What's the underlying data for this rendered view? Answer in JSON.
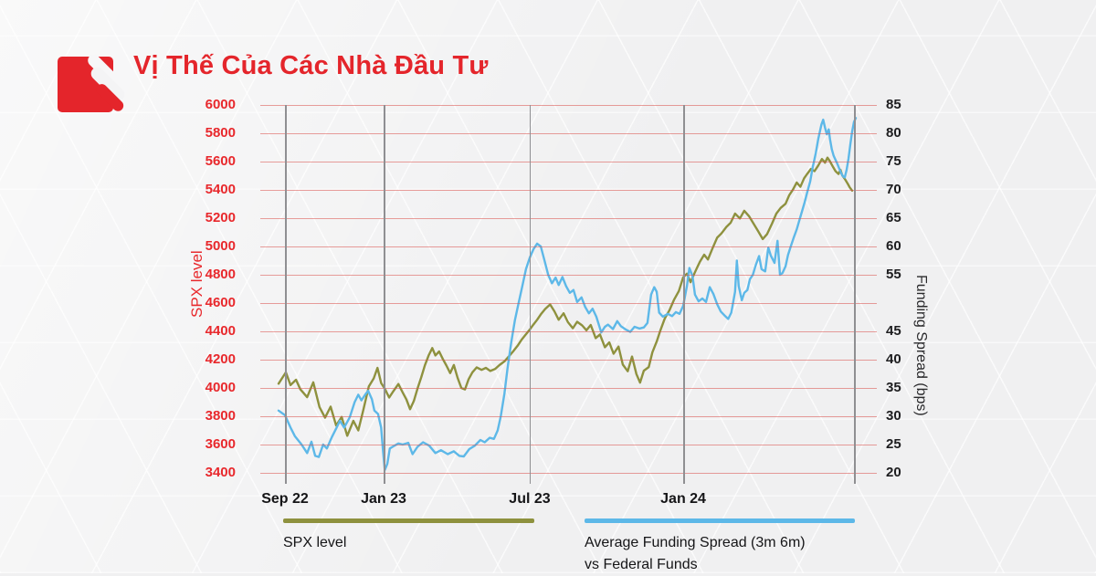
{
  "colors": {
    "red": "#e4252b",
    "axis_red": "#e8282c",
    "olive": "#8e913e",
    "blue": "#5db8e8",
    "grid_red": "#db524c",
    "grid_gray": "#8f8f92"
  },
  "header": {
    "title": "Vị Thế Của Các Nhà Đầu Tư",
    "logo": "pinetree-red-mark"
  },
  "legend": {
    "items": [
      {
        "label": "SPX level",
        "color": "#8e913e"
      },
      {
        "lines": [
          "Average Funding Spread (3m 6m)",
          "vs Federal Funds"
        ],
        "color": "#5db8e8"
      }
    ]
  },
  "chart_data": {
    "type": "line",
    "title": "Vị Thế Của Các Nhà Đầu Tư",
    "grid": {
      "horizontal": true,
      "vertical": true
    },
    "left_axis": {
      "label": "SPX level",
      "min": 3400,
      "max": 6000,
      "ticks": [
        6000,
        5800,
        5600,
        5400,
        5200,
        5000,
        4800,
        4600,
        4400,
        4200,
        4000,
        3800,
        3600,
        3400
      ]
    },
    "right_axis": {
      "label": "Funding Spread (bps)",
      "min": 20,
      "max": 85,
      "ticks": [
        "85",
        "80",
        "75",
        "70",
        "65",
        "60",
        "55",
        "",
        "45",
        "40",
        "35",
        "30",
        "25",
        "20"
      ]
    },
    "x_axis": {
      "ticks": [
        {
          "label": "Sep 22",
          "pos": 4.0
        },
        {
          "label": "Jan 23",
          "pos": 20.0
        },
        {
          "label": "Jul 23",
          "pos": 43.7
        },
        {
          "label": "Jan 24",
          "pos": 68.6
        }
      ],
      "right_boundary_pos": 96.3
    },
    "series": [
      {
        "name": "SPX level",
        "axis": "left",
        "color": "#8e913e",
        "points": [
          [
            2.96,
            4030
          ],
          [
            4.15,
            4110
          ],
          [
            4.9,
            4020
          ],
          [
            5.8,
            4058
          ],
          [
            6.5,
            3990
          ],
          [
            7.6,
            3935
          ],
          [
            8.6,
            4040
          ],
          [
            9.6,
            3865
          ],
          [
            10.5,
            3790
          ],
          [
            11.4,
            3868
          ],
          [
            12.3,
            3735
          ],
          [
            13.2,
            3795
          ],
          [
            14.1,
            3662
          ],
          [
            15.1,
            3768
          ],
          [
            15.9,
            3700
          ],
          [
            16.7,
            3842
          ],
          [
            17.6,
            4010
          ],
          [
            18.4,
            4068
          ],
          [
            19.0,
            4142
          ],
          [
            19.6,
            4035
          ],
          [
            20.2,
            3995
          ],
          [
            20.9,
            3932
          ],
          [
            21.6,
            3978
          ],
          [
            22.4,
            4028
          ],
          [
            23.1,
            3968
          ],
          [
            23.7,
            3918
          ],
          [
            24.3,
            3850
          ],
          [
            24.9,
            3908
          ],
          [
            25.5,
            3995
          ],
          [
            26.1,
            4075
          ],
          [
            26.7,
            4160
          ],
          [
            27.3,
            4230
          ],
          [
            27.9,
            4282
          ],
          [
            28.4,
            4230
          ],
          [
            29.0,
            4258
          ],
          [
            29.6,
            4205
          ],
          [
            30.2,
            4158
          ],
          [
            30.8,
            4105
          ],
          [
            31.4,
            4162
          ],
          [
            32.0,
            4072
          ],
          [
            32.6,
            4000
          ],
          [
            33.2,
            3990
          ],
          [
            33.8,
            4062
          ],
          [
            34.4,
            4110
          ],
          [
            35.1,
            4145
          ],
          [
            35.9,
            4128
          ],
          [
            36.6,
            4142
          ],
          [
            37.3,
            4120
          ],
          [
            38.1,
            4135
          ],
          [
            38.8,
            4162
          ],
          [
            39.6,
            4188
          ],
          [
            40.3,
            4222
          ],
          [
            41.0,
            4258
          ],
          [
            41.8,
            4302
          ],
          [
            42.4,
            4342
          ],
          [
            43.0,
            4375
          ],
          [
            43.7,
            4412
          ],
          [
            44.3,
            4448
          ],
          [
            44.9,
            4482
          ],
          [
            45.5,
            4520
          ],
          [
            46.2,
            4558
          ],
          [
            47.0,
            4590
          ],
          [
            47.7,
            4542
          ],
          [
            48.4,
            4482
          ],
          [
            49.2,
            4528
          ],
          [
            49.9,
            4465
          ],
          [
            50.7,
            4422
          ],
          [
            51.4,
            4468
          ],
          [
            52.2,
            4442
          ],
          [
            52.9,
            4408
          ],
          [
            53.6,
            4445
          ],
          [
            54.4,
            4352
          ],
          [
            55.1,
            4378
          ],
          [
            55.9,
            4288
          ],
          [
            56.6,
            4322
          ],
          [
            57.3,
            4242
          ],
          [
            58.1,
            4292
          ],
          [
            58.8,
            4165
          ],
          [
            59.6,
            4118
          ],
          [
            60.3,
            4222
          ],
          [
            61.0,
            4098
          ],
          [
            61.6,
            4038
          ],
          [
            62.2,
            4122
          ],
          [
            63.0,
            4148
          ],
          [
            63.6,
            4252
          ],
          [
            64.3,
            4328
          ],
          [
            64.9,
            4408
          ],
          [
            65.6,
            4490
          ],
          [
            66.4,
            4552
          ],
          [
            67.1,
            4622
          ],
          [
            67.9,
            4685
          ],
          [
            68.6,
            4782
          ],
          [
            69.2,
            4808
          ],
          [
            69.8,
            4748
          ],
          [
            70.5,
            4818
          ],
          [
            71.3,
            4892
          ],
          [
            72.0,
            4942
          ],
          [
            72.6,
            4908
          ],
          [
            73.3,
            4982
          ],
          [
            74.1,
            5062
          ],
          [
            74.8,
            5092
          ],
          [
            75.6,
            5138
          ],
          [
            76.3,
            5168
          ],
          [
            77.0,
            5232
          ],
          [
            77.8,
            5198
          ],
          [
            78.5,
            5252
          ],
          [
            79.3,
            5212
          ],
          [
            80.0,
            5162
          ],
          [
            80.7,
            5112
          ],
          [
            81.5,
            5052
          ],
          [
            82.2,
            5088
          ],
          [
            83.0,
            5162
          ],
          [
            83.7,
            5232
          ],
          [
            84.4,
            5272
          ],
          [
            85.2,
            5302
          ],
          [
            85.8,
            5362
          ],
          [
            86.4,
            5402
          ],
          [
            87.0,
            5452
          ],
          [
            87.6,
            5422
          ],
          [
            88.2,
            5482
          ],
          [
            88.7,
            5512
          ],
          [
            89.3,
            5548
          ],
          [
            89.9,
            5532
          ],
          [
            90.5,
            5572
          ],
          [
            91.1,
            5618
          ],
          [
            91.6,
            5592
          ],
          [
            92.0,
            5628
          ],
          [
            92.4,
            5602
          ],
          [
            92.9,
            5562
          ],
          [
            93.3,
            5532
          ],
          [
            93.8,
            5512
          ],
          [
            94.1,
            5542
          ],
          [
            94.4,
            5502
          ],
          [
            94.8,
            5478
          ],
          [
            95.3,
            5442
          ],
          [
            95.6,
            5418
          ],
          [
            96.0,
            5395
          ]
        ]
      },
      {
        "name": "Average Funding Spread (3m 6m) vs Federal Funds",
        "axis": "right",
        "color": "#5db8e8",
        "points": [
          [
            2.96,
            31
          ],
          [
            4.0,
            30.2
          ],
          [
            4.9,
            28
          ],
          [
            5.6,
            26.5
          ],
          [
            6.7,
            25
          ],
          [
            7.6,
            23.5
          ],
          [
            8.3,
            25.5
          ],
          [
            8.9,
            23
          ],
          [
            9.5,
            22.8
          ],
          [
            10.2,
            25
          ],
          [
            10.8,
            24.3
          ],
          [
            11.6,
            26.3
          ],
          [
            12.3,
            27.8
          ],
          [
            12.9,
            29.2
          ],
          [
            13.6,
            28
          ],
          [
            14.5,
            29.8
          ],
          [
            15.3,
            32.5
          ],
          [
            15.9,
            33.8
          ],
          [
            16.4,
            32.8
          ],
          [
            17.0,
            33.8
          ],
          [
            17.5,
            34.5
          ],
          [
            18.1,
            33
          ],
          [
            18.5,
            31
          ],
          [
            19.1,
            30.4
          ],
          [
            19.6,
            28
          ],
          [
            19.9,
            24
          ],
          [
            20.2,
            20.5
          ],
          [
            20.6,
            21.6
          ],
          [
            21.0,
            24.3
          ],
          [
            21.6,
            24.7
          ],
          [
            22.4,
            25.2
          ],
          [
            23.1,
            25
          ],
          [
            24.0,
            25.3
          ],
          [
            24.7,
            23.3
          ],
          [
            25.5,
            24.6
          ],
          [
            26.4,
            25.4
          ],
          [
            27.4,
            24.8
          ],
          [
            28.4,
            23.5
          ],
          [
            29.3,
            24
          ],
          [
            30.4,
            23.3
          ],
          [
            31.4,
            23.8
          ],
          [
            32.3,
            23
          ],
          [
            33.0,
            22.9
          ],
          [
            33.9,
            24.2
          ],
          [
            34.8,
            24.8
          ],
          [
            35.7,
            25.8
          ],
          [
            36.4,
            25.4
          ],
          [
            37.2,
            26.2
          ],
          [
            37.9,
            26
          ],
          [
            38.5,
            27.5
          ],
          [
            39.0,
            30
          ],
          [
            39.6,
            34
          ],
          [
            40.1,
            38.5
          ],
          [
            40.7,
            43
          ],
          [
            41.3,
            47
          ],
          [
            41.9,
            50
          ],
          [
            42.5,
            53
          ],
          [
            43.1,
            56
          ],
          [
            43.7,
            58
          ],
          [
            44.3,
            59.5
          ],
          [
            44.9,
            60.5
          ],
          [
            45.5,
            60
          ],
          [
            46.1,
            57.5
          ],
          [
            46.7,
            55
          ],
          [
            47.3,
            53.5
          ],
          [
            47.9,
            54.5
          ],
          [
            48.4,
            53.2
          ],
          [
            49.0,
            54.6
          ],
          [
            49.6,
            53
          ],
          [
            50.2,
            51.8
          ],
          [
            50.8,
            52.3
          ],
          [
            51.4,
            50.2
          ],
          [
            52.1,
            51
          ],
          [
            52.7,
            49.3
          ],
          [
            53.3,
            48.2
          ],
          [
            53.9,
            49
          ],
          [
            54.5,
            47.6
          ],
          [
            55.3,
            44.8
          ],
          [
            55.9,
            45.8
          ],
          [
            56.4,
            46.2
          ],
          [
            57.2,
            45.4
          ],
          [
            57.9,
            46.8
          ],
          [
            58.5,
            45.9
          ],
          [
            59.3,
            45.3
          ],
          [
            60.0,
            44.9
          ],
          [
            60.7,
            45.8
          ],
          [
            61.5,
            45.5
          ],
          [
            62.2,
            45.7
          ],
          [
            62.8,
            46.5
          ],
          [
            63.4,
            51.5
          ],
          [
            63.9,
            52.8
          ],
          [
            64.3,
            52
          ],
          [
            64.7,
            48.3
          ],
          [
            65.3,
            47.6
          ],
          [
            66.1,
            48.1
          ],
          [
            66.8,
            47.7
          ],
          [
            67.4,
            48.4
          ],
          [
            68.0,
            48.1
          ],
          [
            68.6,
            49.5
          ],
          [
            69.2,
            53
          ],
          [
            69.6,
            56.2
          ],
          [
            70.1,
            54.8
          ],
          [
            70.5,
            51.5
          ],
          [
            71.1,
            50.3
          ],
          [
            71.7,
            50.8
          ],
          [
            72.3,
            50.2
          ],
          [
            72.9,
            52.8
          ],
          [
            73.5,
            51.6
          ],
          [
            74.1,
            49.8
          ],
          [
            74.7,
            48.5
          ],
          [
            75.3,
            47.8
          ],
          [
            75.9,
            47.2
          ],
          [
            76.4,
            48.3
          ],
          [
            77.0,
            52
          ],
          [
            77.3,
            57.5
          ],
          [
            77.6,
            53
          ],
          [
            78.1,
            50.5
          ],
          [
            78.5,
            51.8
          ],
          [
            79.0,
            52.3
          ],
          [
            79.4,
            54.2
          ],
          [
            79.9,
            55
          ],
          [
            80.4,
            56.8
          ],
          [
            80.9,
            58.3
          ],
          [
            81.3,
            56
          ],
          [
            81.9,
            55.6
          ],
          [
            82.4,
            59.8
          ],
          [
            82.8,
            58.4
          ],
          [
            83.4,
            57.1
          ],
          [
            83.9,
            61
          ],
          [
            84.3,
            55
          ],
          [
            84.7,
            55.3
          ],
          [
            85.2,
            56.5
          ],
          [
            85.6,
            58.5
          ],
          [
            86.1,
            60.2
          ],
          [
            86.5,
            61.5
          ],
          [
            87.0,
            63
          ],
          [
            87.4,
            64.5
          ],
          [
            87.9,
            66.3
          ],
          [
            88.3,
            67.8
          ],
          [
            88.7,
            69.5
          ],
          [
            89.2,
            71.5
          ],
          [
            89.6,
            74
          ],
          [
            90.1,
            76.5
          ],
          [
            90.5,
            79
          ],
          [
            91.0,
            81.5
          ],
          [
            91.3,
            82.4
          ],
          [
            91.6,
            81
          ],
          [
            91.9,
            79.8
          ],
          [
            92.2,
            80.7
          ],
          [
            92.4,
            79
          ],
          [
            92.7,
            77.2
          ],
          [
            93.0,
            76
          ],
          [
            93.3,
            75.3
          ],
          [
            93.6,
            74.6
          ],
          [
            93.9,
            73.8
          ],
          [
            94.2,
            73
          ],
          [
            94.5,
            72.4
          ],
          [
            94.8,
            72.2
          ],
          [
            95.1,
            73.5
          ],
          [
            95.4,
            75.5
          ],
          [
            95.7,
            78
          ],
          [
            96.0,
            80.3
          ],
          [
            96.3,
            82
          ],
          [
            96.6,
            82.7
          ]
        ]
      }
    ]
  }
}
